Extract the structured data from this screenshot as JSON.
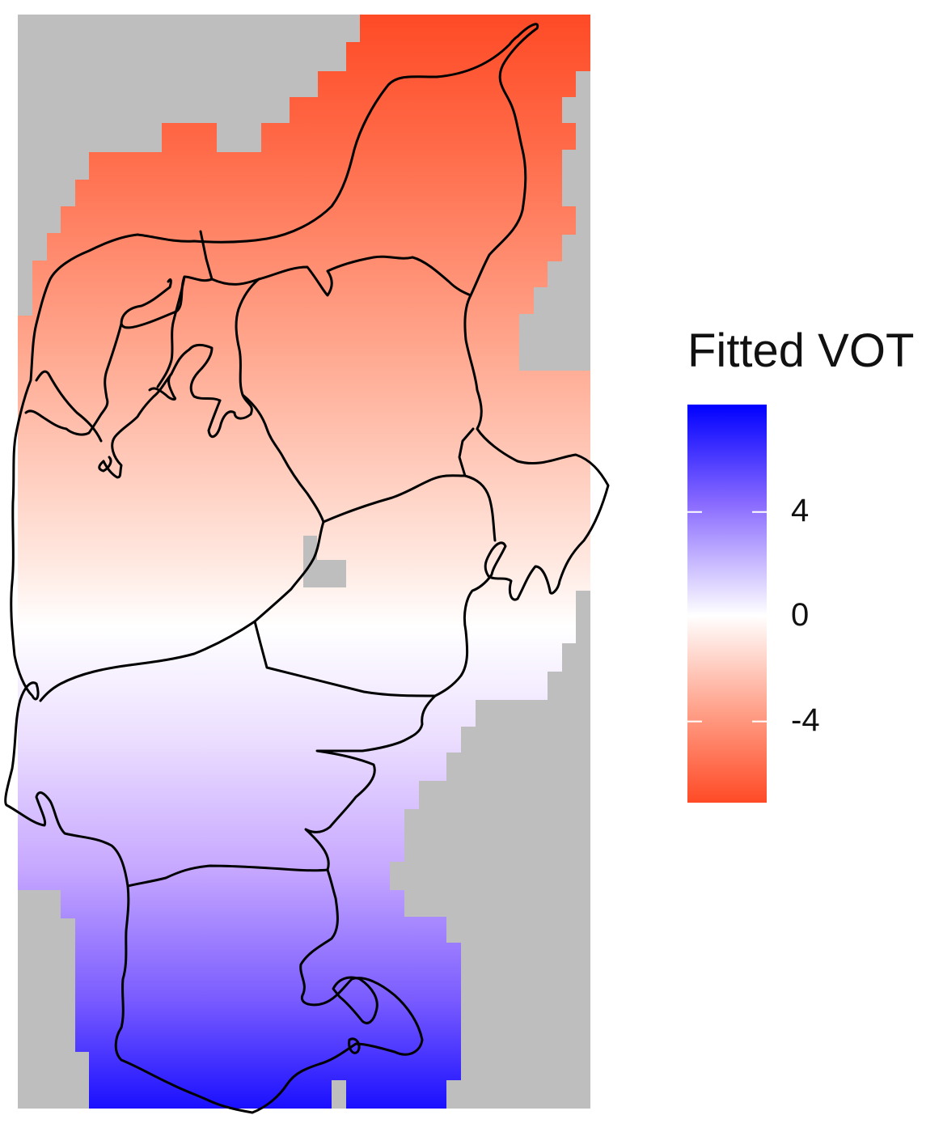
{
  "map": {
    "fill_scale": {
      "low": "#ff4a26",
      "mid": "#ffffff",
      "high": "#0000ff"
    },
    "missing_color": "#bebebe",
    "border_color": "#000000",
    "value_range": [
      -7.1,
      8.1
    ]
  },
  "legend": {
    "title": "Fitted VOT",
    "breaks": [
      {
        "value": 4,
        "label": "4"
      },
      {
        "value": 0,
        "label": "0"
      },
      {
        "value": -4,
        "label": "-4"
      }
    ]
  }
}
